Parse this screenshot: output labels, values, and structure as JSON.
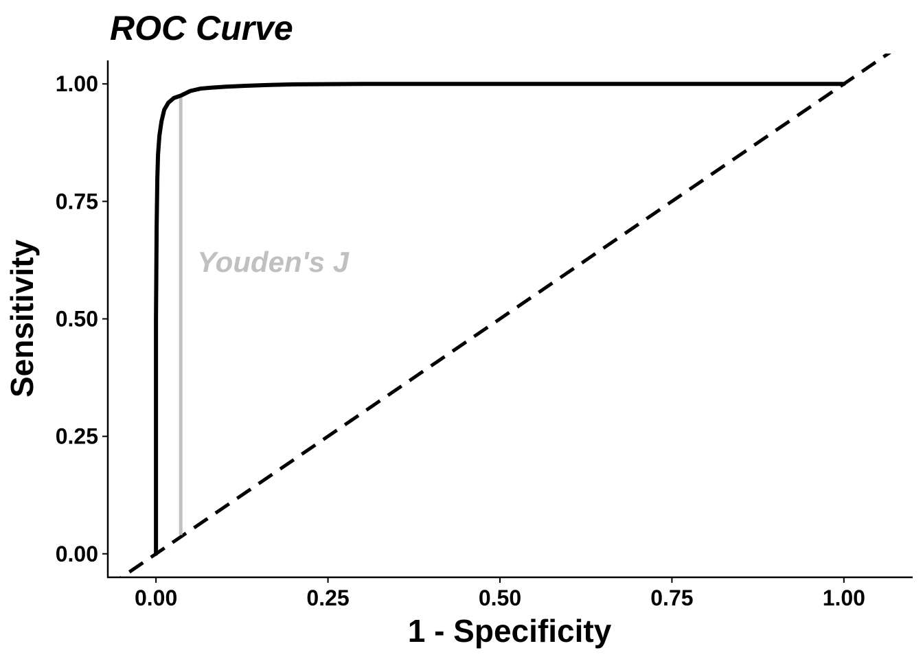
{
  "chart_data": {
    "type": "line",
    "title": "ROC Curve",
    "xlabel": "1 - Specificity",
    "ylabel": "Sensitivity",
    "xlim": [
      -0.07,
      1.1
    ],
    "ylim": [
      -0.05,
      1.05
    ],
    "x_ticks": [
      0.0,
      0.25,
      0.5,
      0.75,
      1.0
    ],
    "x_tick_labels": [
      "0.00",
      "0.25",
      "0.50",
      "0.75",
      "1.00"
    ],
    "y_ticks": [
      0.0,
      0.25,
      0.5,
      0.75,
      1.0
    ],
    "y_tick_labels": [
      "0.00",
      "0.25",
      "0.50",
      "0.75",
      "1.00"
    ],
    "grid": false,
    "series": [
      {
        "x": [
          0.0,
          0.0,
          0.001,
          0.002,
          0.003,
          0.005,
          0.008,
          0.012,
          0.018,
          0.026,
          0.036,
          0.05,
          0.065,
          0.08,
          0.1,
          0.13,
          0.17,
          0.2,
          0.3,
          0.5,
          0.75,
          1.0
        ],
        "y": [
          0.0,
          0.5,
          0.7,
          0.8,
          0.85,
          0.89,
          0.92,
          0.945,
          0.96,
          0.97,
          0.975,
          0.985,
          0.99,
          0.992,
          0.994,
          0.996,
          0.998,
          0.999,
          1.0,
          1.0,
          1.0,
          1.0
        ],
        "color": "#000000",
        "style": "solid"
      },
      {
        "x": [
          -0.07,
          1.1
        ],
        "y": [
          -0.07,
          1.1
        ],
        "color": "#000000",
        "style": "dashed"
      }
    ],
    "youden": {
      "label": "Youden's J",
      "x": 0.036,
      "y_from": 0.04,
      "y_to": 0.975,
      "color": "#c0c0c0",
      "label_x": 0.06,
      "label_y": 0.6
    }
  }
}
